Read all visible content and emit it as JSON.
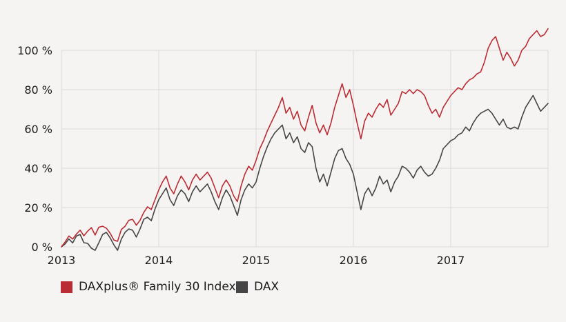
{
  "colors": {
    "background": "#f5f4f2",
    "grid": "#dcdad8",
    "axis_text": "#1a1a1a",
    "family30_red": "#b92c33",
    "dax_gray": "#454545"
  },
  "legend": {
    "family30_label": "DAXplus® Family 30 Index",
    "dax_label": "DAX"
  },
  "chart_data": {
    "type": "line",
    "title": "",
    "xlabel": "",
    "ylabel": "",
    "x_start": 2013,
    "x_end": 2018,
    "x_tick_labels": [
      "2013",
      "2014",
      "2015",
      "2016",
      "2017"
    ],
    "y_ticks": [
      0,
      20,
      40,
      60,
      80,
      100
    ],
    "y_tick_suffix": " %",
    "ylim": [
      0,
      100
    ],
    "grid": true,
    "legend_position": "bottom-left",
    "points_per_year": 26,
    "series": [
      {
        "name": "DAXplus® Family 30 Index",
        "color": "#b92c33",
        "values": [
          0,
          2.5,
          5.5,
          4,
          6.5,
          8.5,
          5.6,
          8,
          9.8,
          6,
          10,
          10.5,
          9.5,
          7,
          3.5,
          2.8,
          8.8,
          10.5,
          13.5,
          14,
          11,
          13.5,
          17.5,
          20.4,
          19,
          24,
          29,
          33,
          36,
          30,
          27,
          32,
          36,
          33,
          29,
          34,
          37,
          34,
          36,
          38,
          35,
          30,
          25,
          31,
          34,
          31,
          26,
          23,
          31,
          37,
          41,
          39,
          44,
          50,
          54,
          59,
          63,
          67,
          71,
          76,
          68,
          71,
          65,
          69,
          62,
          59,
          66,
          72,
          63,
          58,
          62,
          57,
          63,
          71,
          77,
          83,
          76,
          80,
          72,
          63,
          55,
          64,
          68,
          66,
          70,
          73,
          71,
          75,
          67,
          70,
          73,
          79,
          78,
          80,
          78,
          80,
          79,
          77,
          72,
          68,
          70,
          66,
          71,
          74,
          77,
          79,
          81,
          80,
          83,
          85,
          86,
          88,
          89,
          94,
          101,
          105,
          107,
          101,
          95,
          99,
          96,
          92,
          95,
          100,
          102,
          106,
          108,
          110,
          107,
          108,
          111
        ]
      },
      {
        "name": "DAX",
        "color": "#454545",
        "values": [
          0,
          1.5,
          4,
          2,
          5.5,
          6.3,
          2.1,
          1.8,
          -0.7,
          -1.8,
          2.1,
          6.3,
          7.4,
          4.6,
          1.1,
          -1.8,
          3.9,
          7.4,
          9.1,
          8.5,
          5,
          9.1,
          14,
          15.1,
          13.3,
          19.3,
          24,
          27,
          30,
          24,
          21,
          26,
          29,
          27,
          23,
          28,
          31,
          28,
          30,
          32,
          28,
          23,
          19,
          25,
          29,
          26,
          21,
          16,
          24,
          29,
          32,
          30,
          33,
          40,
          46,
          51,
          55,
          58,
          60,
          62,
          55,
          58,
          53,
          56,
          50,
          48,
          53,
          51,
          40,
          33,
          37,
          31,
          38,
          45,
          49,
          50,
          45,
          42,
          37,
          28,
          19,
          27,
          30,
          26,
          30,
          36,
          32,
          34,
          28,
          33,
          36,
          41,
          40,
          38,
          35,
          39,
          41,
          38,
          36,
          37,
          40,
          44,
          50,
          52,
          54,
          55,
          57,
          58,
          61,
          59,
          63,
          66,
          68,
          69,
          70,
          68,
          65,
          62,
          65,
          61,
          60,
          61,
          60,
          66,
          71,
          74,
          77,
          73,
          69,
          71,
          73
        ]
      }
    ]
  }
}
